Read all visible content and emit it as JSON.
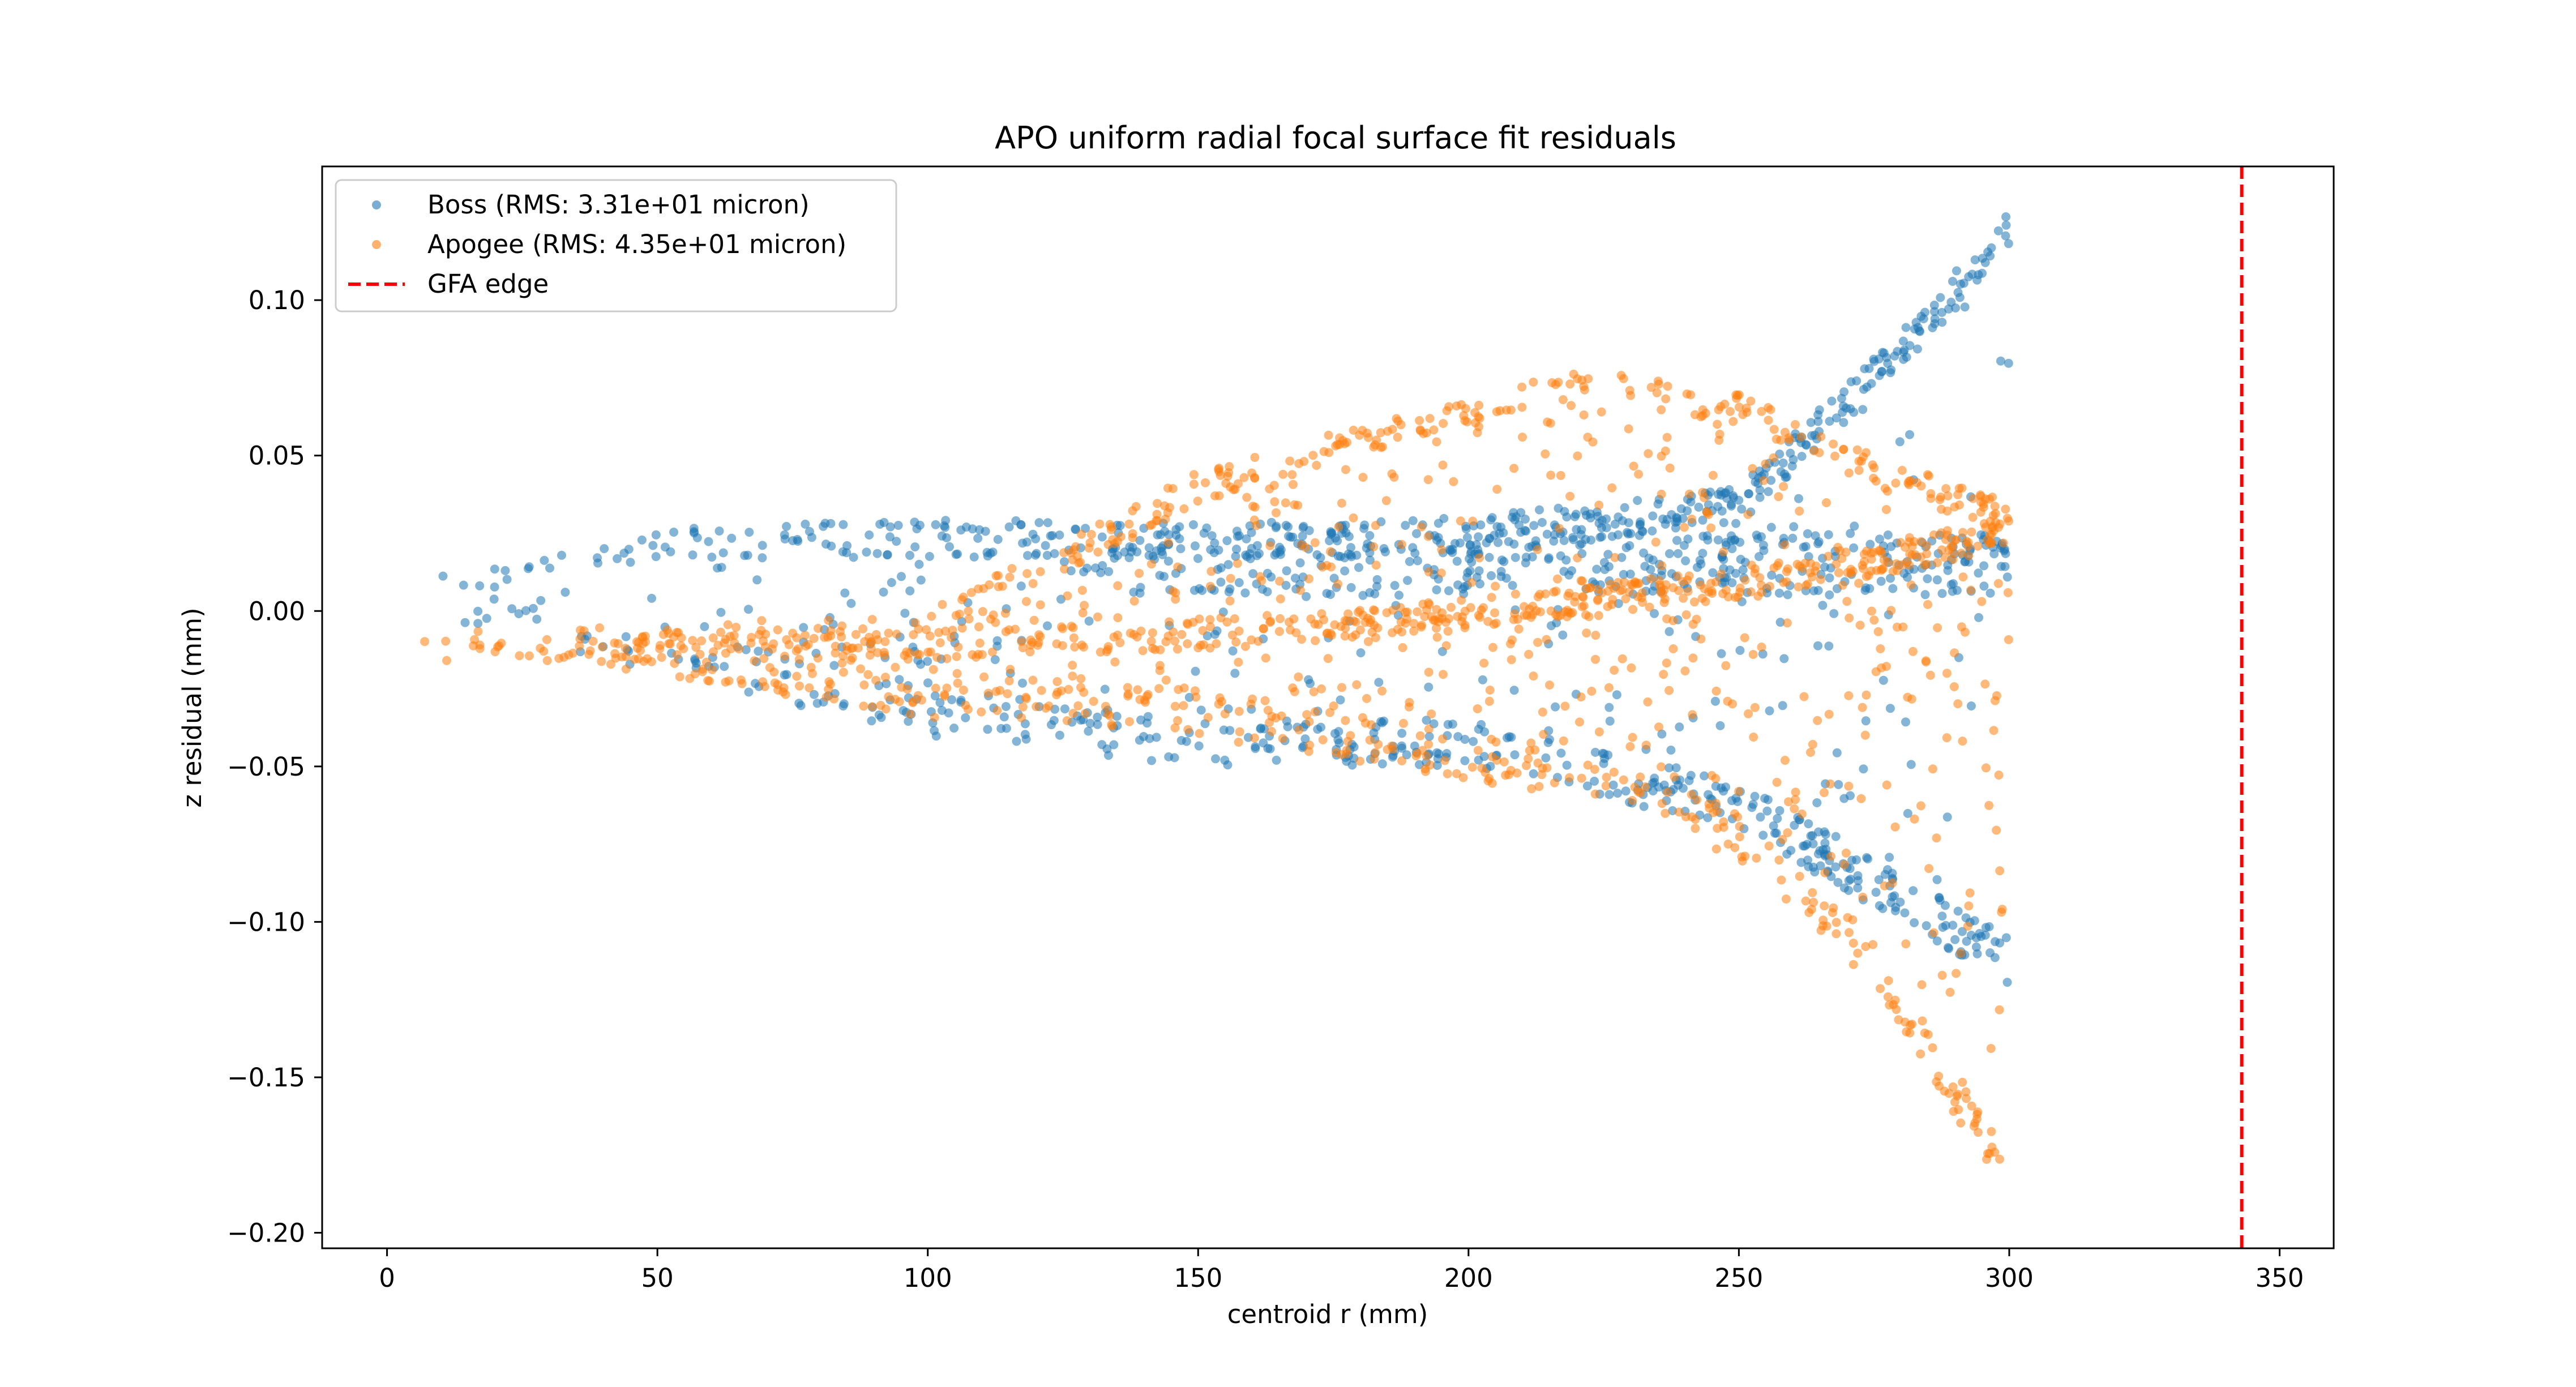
{
  "chart_data": {
    "type": "scatter",
    "title": "APO uniform radial focal surface fit residuals",
    "xlabel": "centroid r (mm)",
    "ylabel": "z residual (mm)",
    "xlim": [
      -12,
      360
    ],
    "ylim": [
      -0.205,
      0.143
    ],
    "xticks": [
      0,
      50,
      100,
      150,
      200,
      250,
      300,
      350
    ],
    "xtick_labels": [
      "0",
      "50",
      "100",
      "150",
      "200",
      "250",
      "300",
      "350"
    ],
    "yticks": [
      -0.2,
      -0.15,
      -0.1,
      -0.05,
      0.0,
      0.05,
      0.1
    ],
    "ytick_labels": [
      "−0.20",
      "−0.15",
      "−0.10",
      "−0.05",
      "0.00",
      "0.05",
      "0.10"
    ],
    "grid": false,
    "legend_position": "upper-left",
    "series": [
      {
        "name": "Boss (RMS: 3.31e+01 micron)",
        "color": "#1f77b4",
        "marker": "circle",
        "points_per_trend": 11,
        "description_of_shape": "Upper band from z=+0.008 at r=5 rising to +0.03 near r=100, flat ~+0.025 to r=300; lower band from z=-0.005 at r=5 falling to -0.05 at r=150 and to -0.12 at r=300; middle band ~+0.01 to +0.025 across 130-300; widening fan 0.03..0.13 for r>265.",
        "envelope": [
          {
            "r": 5,
            "upper": 0.01,
            "lower": 0.0
          },
          {
            "r": 50,
            "upper": 0.027,
            "lower": -0.02
          },
          {
            "r": 100,
            "upper": 0.03,
            "lower": -0.04
          },
          {
            "r": 150,
            "upper": 0.028,
            "lower": -0.05
          },
          {
            "r": 200,
            "upper": 0.03,
            "lower": -0.05
          },
          {
            "r": 250,
            "upper": 0.04,
            "lower": -0.07
          },
          {
            "r": 280,
            "upper": 0.09,
            "lower": -0.1
          },
          {
            "r": 300,
            "upper": 0.128,
            "lower": -0.12
          }
        ]
      },
      {
        "name": "Apogee (RMS: 4.35e+01 micron)",
        "color": "#ff7f0e",
        "marker": "circle",
        "description_of_shape": "Dome-shaped upper envelope from z=-0.01 at r=5 rising to +0.078 near r=225 and back to +0.03 at r=300; lower envelope from -0.012 at r=5 to -0.05 at r=200 and down to -0.19 at r=300; dense arc near 0 rising to +0.025 at r=300.",
        "envelope": [
          {
            "r": 5,
            "upper": -0.008,
            "lower": -0.013
          },
          {
            "r": 50,
            "upper": -0.005,
            "lower": -0.02
          },
          {
            "r": 100,
            "upper": 0.0,
            "lower": -0.035
          },
          {
            "r": 150,
            "upper": 0.045,
            "lower": -0.04
          },
          {
            "r": 200,
            "upper": 0.07,
            "lower": -0.055
          },
          {
            "r": 225,
            "upper": 0.078,
            "lower": -0.06
          },
          {
            "r": 250,
            "upper": 0.07,
            "lower": -0.08
          },
          {
            "r": 275,
            "upper": 0.05,
            "lower": -0.12
          },
          {
            "r": 300,
            "upper": 0.035,
            "lower": -0.19
          }
        ]
      },
      {
        "name": "GFA edge",
        "color": "#ff0000",
        "style": "dashed-vertical-line",
        "x": 343
      }
    ]
  }
}
